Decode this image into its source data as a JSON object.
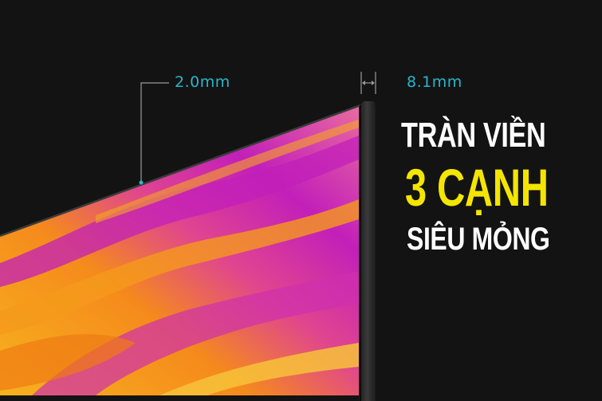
{
  "dimensions": {
    "bezel_label": "2.0mm",
    "depth_label": "8.1mm"
  },
  "headline": {
    "line1": "Tràn viền",
    "line2": "3 cạnh",
    "line3": "siêu mỏng"
  },
  "colors": {
    "background": "#131313",
    "annotation_line": "#9a9a9a",
    "annotation_text": "#29b6c9",
    "accent_yellow": "#f4e500",
    "headline_white": "#ffffff",
    "screen_magenta": "#c21fb9",
    "screen_orange": "#f59a1b"
  }
}
